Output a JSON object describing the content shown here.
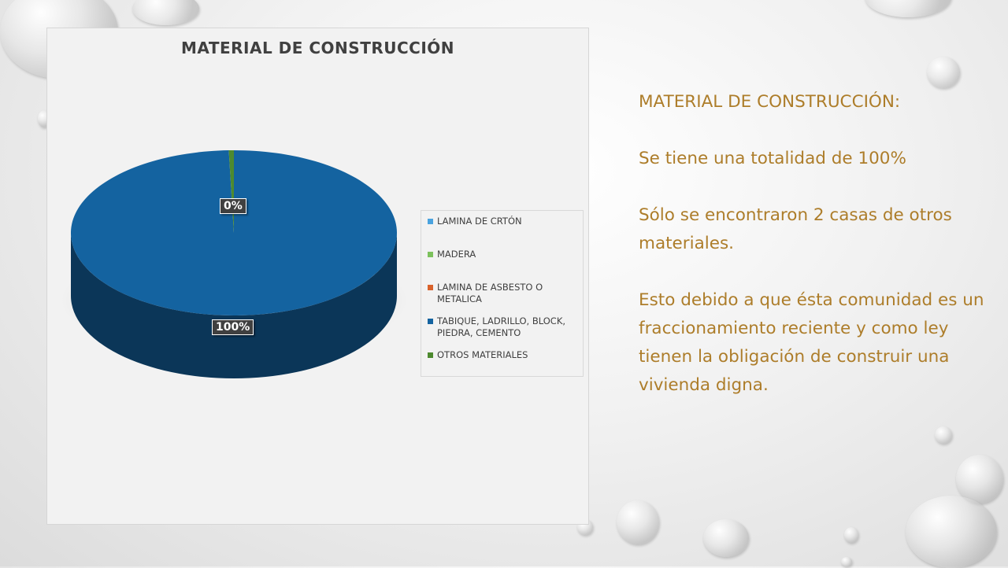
{
  "chart_data": {
    "type": "pie",
    "title": "MATERIAL DE CONSTRUCCIÓN",
    "legend_position": "right",
    "categories": [
      "LAMINA DE CRTÓN",
      "MADERA",
      "LAMINA DE ASBESTO O METALICA",
      "TABIQUE, LADRILLO, BLOCK, PIEDRA, CEMENTO",
      "OTROS MATERIALES"
    ],
    "values": [
      0,
      0,
      0,
      99.5,
      0.5
    ],
    "colors": [
      "#4aa3df",
      "#7cc15c",
      "#d9622b",
      "#1463a0",
      "#4d8a2f"
    ],
    "data_labels": [
      {
        "category": "OTROS MATERIALES",
        "text": "0%"
      },
      {
        "category": "TABIQUE, LADRILLO, BLOCK, PIEDRA, CEMENTO",
        "text": "100%"
      }
    ]
  },
  "side_text": {
    "heading": "MATERIAL DE CONSTRUCCIÓN:",
    "p1": "Se tiene una totalidad de 100%",
    "p2": "Sólo se encontraron 2 casas de otros materiales.",
    "p3": "Esto debido a que ésta comunidad es un fraccionamiento reciente y como ley tienen la obligación de construir una vivienda digna."
  }
}
